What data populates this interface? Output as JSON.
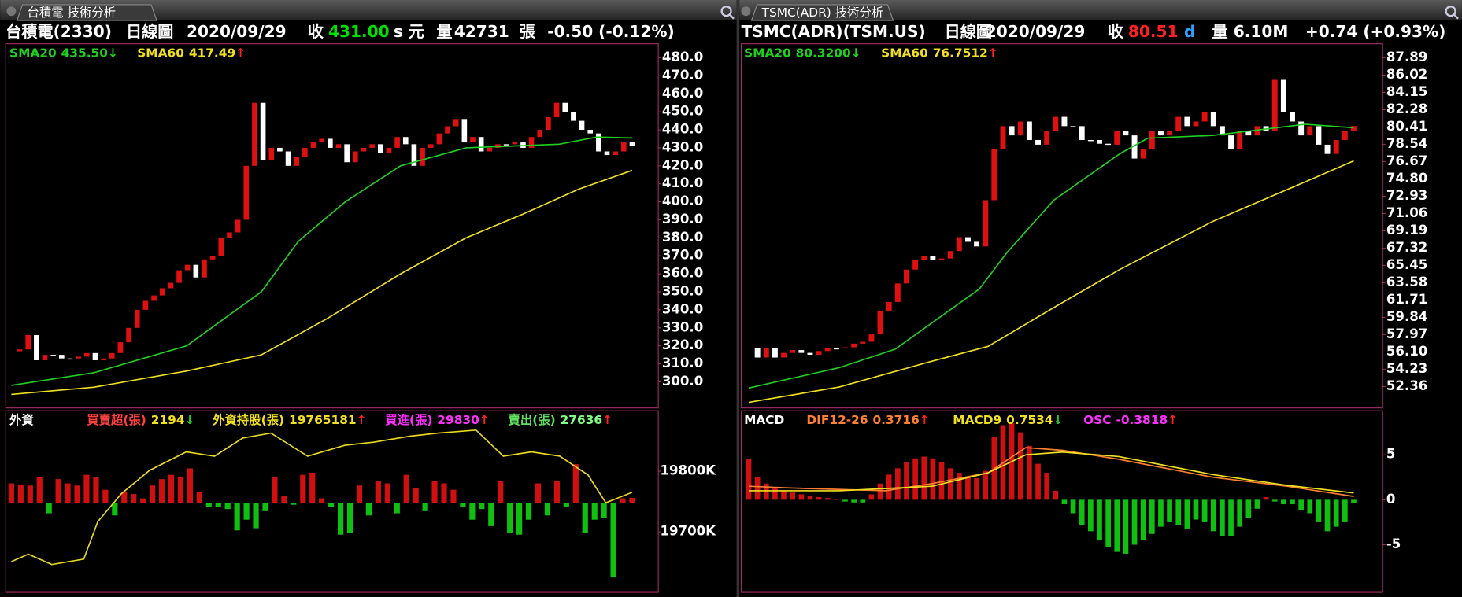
{
  "panels": [
    {
      "tab": "台積電 技術分析",
      "header": [
        {
          "text": "台積電(2330)",
          "color": "#ffffff"
        },
        {
          "text": "日線圖",
          "color": "#ffffff"
        },
        {
          "text": "2020/09/29",
          "color": "#ffffff"
        },
        {
          "text": "收",
          "color": "#ffffff"
        },
        {
          "text": "431.00",
          "color": "#00e000"
        },
        {
          "text": "s",
          "color": "#ffffff"
        },
        {
          "text": "元",
          "color": "#ffffff"
        },
        {
          "text": "量",
          "color": "#ffffff"
        },
        {
          "text": "42731",
          "color": "#ffffff"
        },
        {
          "text": "張",
          "color": "#ffffff"
        },
        {
          "text": "-0.50 (-0.12%)",
          "color": "#ffffff"
        }
      ]
    },
    {
      "tab": "TSMC(ADR) 技術分析",
      "header": [
        {
          "text": "TSMC(ADR)(TSM.US)",
          "color": "#ffffff"
        },
        {
          "text": "日線圖",
          "color": "#ffffff"
        },
        {
          "text": "2020/09/29",
          "color": "#ffffff"
        },
        {
          "text": "收",
          "color": "#ffffff"
        },
        {
          "text": "80.51",
          "color": "#ff2020"
        },
        {
          "text": "d",
          "color": "#30a0ff"
        },
        {
          "text": "量",
          "color": "#ffffff"
        },
        {
          "text": "6.10M",
          "color": "#ffffff"
        },
        {
          "text": "+0.74 (+0.93%)",
          "color": "#ffffff"
        }
      ]
    }
  ],
  "chart_data": [
    {
      "type": "candlestick",
      "up_color": "#e01010",
      "down_color": "#ffffff",
      "xlim": [
        0,
        74
      ],
      "ylim": [
        285.5,
        487.8
      ],
      "yticks": [
        {
          "value": 300,
          "label": "300.0"
        },
        {
          "value": 310,
          "label": "310.0"
        },
        {
          "value": 320,
          "label": "320.0"
        },
        {
          "value": 330,
          "label": "330.0"
        },
        {
          "value": 340,
          "label": "340.0"
        },
        {
          "value": 350,
          "label": "350.0"
        },
        {
          "value": 360,
          "label": "360.0"
        },
        {
          "value": 370,
          "label": "370.0"
        },
        {
          "value": 380,
          "label": "380.0"
        },
        {
          "value": 390,
          "label": "390.0"
        },
        {
          "value": 400,
          "label": "400.0"
        },
        {
          "value": 410,
          "label": "410.0"
        },
        {
          "value": 420,
          "label": "420.0"
        },
        {
          "value": 430,
          "label": "430.0"
        },
        {
          "value": 440,
          "label": "440.0"
        },
        {
          "value": 450,
          "label": "450.0"
        },
        {
          "value": 460,
          "label": "460.0"
        },
        {
          "value": 470,
          "label": "470.0"
        },
        {
          "value": 480,
          "label": "480.0"
        }
      ],
      "values": [
        317,
        318,
        326,
        312,
        315,
        315,
        313,
        313,
        314,
        316,
        312,
        313,
        316,
        322,
        330,
        340,
        345,
        348,
        352,
        355,
        362,
        365,
        358,
        368,
        370,
        380,
        383,
        390,
        420,
        455,
        423,
        430,
        428,
        420,
        425,
        430,
        433,
        435,
        430,
        432,
        422,
        428,
        430,
        432,
        427,
        430,
        436,
        432,
        420,
        430,
        432,
        438,
        442,
        446,
        433,
        436,
        428,
        430,
        432,
        432,
        433,
        430,
        436,
        440,
        447,
        455,
        450,
        445,
        440,
        438,
        428,
        426,
        428,
        433,
        431
      ],
      "series": [
        {
          "color": "#20d020",
          "x": [
            0,
            9.8,
            20.9,
            29.8,
            34.2,
            39.8,
            46.4,
            54.2,
            65.3,
            69.8,
            74
          ],
          "values": [
            298,
            305,
            320,
            350,
            378,
            400,
            420,
            430,
            432,
            436,
            435.5
          ]
        },
        {
          "color": "#f0e020",
          "x": [
            0,
            9.8,
            20.9,
            29.8,
            37.6,
            46.4,
            54.2,
            60.9,
            67.6,
            74
          ],
          "values": [
            293,
            297,
            306,
            315,
            335,
            360,
            380,
            393,
            407,
            417.49
          ]
        }
      ],
      "legend": [
        {
          "name": "SMA20",
          "value": "435.50",
          "arrow": "↓",
          "color": "#20d020",
          "arrow_color": "#20d020"
        },
        {
          "name": "SMA60",
          "value": "417.49",
          "arrow": "↑",
          "color": "#f0e020",
          "arrow_color": "#ff2020"
        }
      ]
    },
    {
      "type": "bar_line",
      "up_color": "#d01010",
      "down_color": "#10c010",
      "xlim": [
        0,
        66
      ],
      "ylim": [
        19600000,
        19900000
      ],
      "y2lim": [
        -42000,
        43000
      ],
      "yticks": [
        {
          "value": 19700000,
          "label": "19700K"
        },
        {
          "value": 19800000,
          "label": "19800K"
        }
      ],
      "bars": {
        "axis": "y2",
        "values": [
          9000,
          8500,
          8000,
          12000,
          -5000,
          11000,
          9000,
          8000,
          13000,
          12000,
          6000,
          -6000,
          5000,
          4000,
          2000,
          8000,
          11000,
          13000,
          12000,
          16000,
          5000,
          -2000,
          -2000,
          -3000,
          -13000,
          -8000,
          -12000,
          -4000,
          12000,
          3000,
          -1000,
          13000,
          14000,
          2000,
          -2000,
          -15000,
          -14000,
          8000,
          -6000,
          10000,
          9000,
          -5000,
          13000,
          7000,
          -4000,
          10000,
          9000,
          6000,
          -2000,
          -8000,
          -3000,
          -11000,
          10000,
          -14000,
          -15000,
          -8000,
          9000,
          -6000,
          10000,
          -2000,
          18000,
          -14000,
          -8000,
          -7000,
          -35000,
          2000,
          2194
        ]
      },
      "series": [
        {
          "color": "#e8d820",
          "x": [
            0,
            1.8,
            4.3,
            7.7,
            9.2,
            11.7,
            14.7,
            18.6,
            21.6,
            24.6,
            27.6,
            31.5,
            35.5,
            38.5,
            42.4,
            45.4,
            49.4,
            52.3,
            55.3,
            58.3,
            61.3,
            63.2,
            66
          ],
          "values": [
            19650800,
            19663000,
            19646000,
            19655000,
            19717000,
            19763000,
            19801500,
            19832000,
            19825000,
            19855000,
            19863000,
            19825000,
            19843000,
            19848000,
            19858000,
            19863000,
            19868000,
            19825000,
            19832000,
            19825000,
            19794000,
            19748000,
            19765181
          ]
        }
      ],
      "legend": [
        {
          "name": "外資",
          "color": "#ffffff"
        },
        {
          "name": "買賣超(張)",
          "value": "2194",
          "arrow": "↓",
          "color": "#ff4040",
          "value_color": "#f0e020",
          "arrow_color": "#20d020"
        },
        {
          "name": "外資持股(張)",
          "value": "19765181",
          "arrow": "↑",
          "color": "#f0e020",
          "value_color": "#f0e020",
          "arrow_color": "#ff2020"
        },
        {
          "name": "買進(張)",
          "value": "29830",
          "arrow": "↑",
          "color": "#ff30ff",
          "value_color": "#ff30ff",
          "arrow_color": "#ff2020"
        },
        {
          "name": "賣出(張)",
          "value": "27636",
          "arrow": "↑",
          "color": "#60e060",
          "value_color": "#80ff80",
          "arrow_color": "#ff2020"
        }
      ]
    },
    {
      "type": "candlestick",
      "up_color": "#e01010",
      "down_color": "#ffffff",
      "xlim": [
        0,
        69
      ],
      "ylim": [
        50.05,
        89.4
      ],
      "yticks": [
        87.89,
        86.02,
        84.15,
        82.28,
        80.41,
        78.54,
        76.67,
        {
          "value": 74.8,
          "label": "74.80"
        },
        72.93,
        71.06,
        69.19,
        67.32,
        65.45,
        63.58,
        61.71,
        59.84,
        57.97,
        {
          "value": 56.1,
          "label": "56.10"
        },
        54.23,
        52.36
      ],
      "values": [
        56.5,
        55.5,
        56.5,
        55.5,
        56,
        56.3,
        56,
        55.8,
        56.2,
        56.5,
        56.5,
        56.6,
        57,
        57.2,
        58,
        60.5,
        61.5,
        63.5,
        65,
        66,
        66.5,
        66,
        66.2,
        67,
        68.5,
        68,
        67.5,
        72.5,
        78,
        80.5,
        79.5,
        81,
        79,
        78.5,
        80,
        81.5,
        80.5,
        80.5,
        79,
        79,
        78.6,
        78.5,
        80,
        79.5,
        77,
        78,
        80,
        79.5,
        80,
        81.5,
        80.5,
        81,
        82,
        80.5,
        79.5,
        78,
        80,
        79.5,
        80.5,
        80,
        85.5,
        82,
        81,
        79.5,
        80.5,
        78.5,
        77.5,
        79,
        80,
        80.51
      ],
      "series": [
        {
          "color": "#20d020",
          "x": [
            0,
            10.3,
            16.7,
            26.3,
            29.5,
            34.8,
            42.3,
            45.5,
            52.9,
            63.5,
            69
          ],
          "values": [
            52.2,
            54.4,
            56.4,
            62.9,
            66.9,
            72.5,
            77.5,
            79.2,
            79.5,
            80.7,
            80.32
          ]
        },
        {
          "color": "#f0e020",
          "x": [
            0,
            10.3,
            20.9,
            27.3,
            34.8,
            42.3,
            52.9,
            63.5,
            69
          ],
          "values": [
            50.65,
            52.3,
            55.1,
            56.7,
            60.9,
            65,
            70.2,
            74.5,
            76.7512
          ]
        }
      ],
      "legend": [
        {
          "name": "SMA20",
          "value": "80.3200",
          "arrow": "↓",
          "color": "#20d020",
          "arrow_color": "#20d020"
        },
        {
          "name": "SMA60",
          "value": "76.7512",
          "arrow": "↑",
          "color": "#f0e020",
          "arrow_color": "#ff2020"
        }
      ]
    },
    {
      "type": "bar_line",
      "up_color": "#d01010",
      "down_color": "#10c010",
      "xlim": [
        0,
        69
      ],
      "ylim": [
        -10.3,
        9.9
      ],
      "yticks": [
        5,
        0,
        -5
      ],
      "bars": {
        "axis": "y",
        "values": [
          4.5,
          2.5,
          1.8,
          1.3,
          1.0,
          0.8,
          0.6,
          0.4,
          0.3,
          0.2,
          0.1,
          -0.2,
          -0.3,
          -0.3,
          0.6,
          1.8,
          2.8,
          3.5,
          4.2,
          4.6,
          4.8,
          4.6,
          4.2,
          3.5,
          3.0,
          2.6,
          2.4,
          3.2,
          7.0,
          8.3,
          8.5,
          7.5,
          6.0,
          4.0,
          3.0,
          1.0,
          -0.5,
          -1.5,
          -2.8,
          -3.5,
          -4.5,
          -5.3,
          -5.8,
          -6.0,
          -5.0,
          -4.5,
          -3.8,
          -3.0,
          -2.5,
          -2.8,
          -3.2,
          -2.2,
          -2.5,
          -3.5,
          -4.0,
          -4.0,
          -3.0,
          -2.0,
          -1.0,
          0.3,
          -0.2,
          -0.5,
          -0.5,
          -1.2,
          -1.5,
          -2.5,
          -3.5,
          -3.0,
          -2.5,
          -0.3818
        ]
      },
      "series": [
        {
          "color": "#ff8030",
          "x": [
            0,
            5,
            15.6,
            20.9,
            27.3,
            31.6,
            35.8,
            42.2,
            52.9,
            61.4,
            69
          ],
          "values": [
            1.5,
            1.3,
            1.0,
            1.8,
            3.0,
            5.8,
            5.5,
            4.5,
            2.5,
            1.5,
            0.3716
          ]
        },
        {
          "color": "#f0e020",
          "x": [
            0,
            10.3,
            20.9,
            27.3,
            31.6,
            35.8,
            42.2,
            52.9,
            61.4,
            69
          ],
          "values": [
            1.0,
            1.0,
            1.5,
            3.0,
            5.0,
            5.3,
            4.8,
            2.8,
            1.6,
            0.7534
          ]
        }
      ],
      "legend": [
        {
          "name": "MACD",
          "color": "#ffffff"
        },
        {
          "name": "DIF12-26",
          "value": "0.3716",
          "arrow": "↑",
          "color": "#ff8030",
          "value_color": "#ff8030",
          "arrow_color": "#ff2020"
        },
        {
          "name": "MACD9",
          "value": "0.7534",
          "arrow": "↓",
          "color": "#f0e020",
          "value_color": "#f0e020",
          "arrow_color": "#20d020"
        },
        {
          "name": "OSC",
          "value": "-0.3818",
          "arrow": "↑",
          "color": "#ff30ff",
          "value_color": "#ff30ff",
          "arrow_color": "#ff2020"
        }
      ]
    }
  ]
}
